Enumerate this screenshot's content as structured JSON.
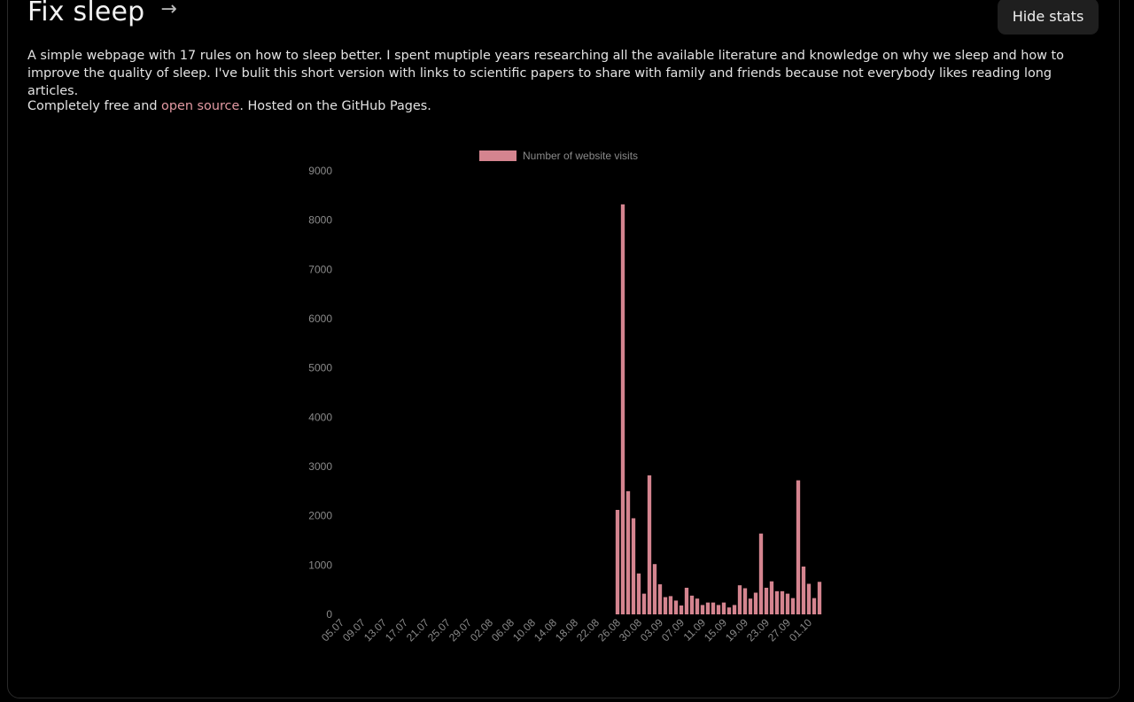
{
  "header": {
    "title": "Fix sleep",
    "arrow_icon": "arrow-right-icon",
    "hide_button_label": "Hide stats"
  },
  "intro": {
    "paragraph": "A simple webpage with 17 rules on how to sleep better. I spent muptiple years researching all the available literature and knowledge on why we sleep and how to improve the quality of sleep. I've bulit this short version with links to scientific papers to share with family and friends because not everybody likes reading long articles.",
    "line2_before": "Completely free and ",
    "line2_link": "open source",
    "line2_after": ". Hosted on the GitHub Pages."
  },
  "colors": {
    "bar": "#d4848f",
    "link": "#e39aa3",
    "background": "#000000"
  },
  "chart_data": {
    "type": "bar",
    "legend": "Number of website visits",
    "legend_position": "top",
    "ylim": [
      0,
      9000
    ],
    "yticks": [
      0,
      1000,
      2000,
      3000,
      4000,
      5000,
      6000,
      7000,
      8000,
      9000
    ],
    "grid": false,
    "xtick_labels": [
      "05.07",
      "09.07",
      "13.07",
      "17.07",
      "21.07",
      "25.07",
      "29.07",
      "02.08",
      "06.08",
      "10.08",
      "14.08",
      "18.08",
      "22.08",
      "26.08",
      "30.08",
      "03.09",
      "07.09",
      "11.09",
      "15.09",
      "19.09",
      "23.09",
      "27.09",
      "01.10"
    ],
    "series": [
      {
        "name": "Number of website visits",
        "values": [
          0,
          0,
          0,
          0,
          0,
          0,
          0,
          0,
          0,
          0,
          0,
          0,
          0,
          0,
          0,
          0,
          0,
          0,
          0,
          0,
          0,
          0,
          0,
          0,
          0,
          0,
          0,
          0,
          0,
          0,
          0,
          0,
          0,
          0,
          0,
          0,
          0,
          0,
          0,
          0,
          0,
          0,
          0,
          0,
          0,
          0,
          0,
          0,
          0,
          0,
          0,
          0,
          2120,
          8320,
          2500,
          1950,
          830,
          420,
          2820,
          1020,
          610,
          350,
          370,
          280,
          180,
          540,
          380,
          320,
          190,
          240,
          240,
          190,
          240,
          140,
          190,
          590,
          530,
          320,
          440,
          1640,
          540,
          670,
          470,
          470,
          420,
          330,
          2720,
          970,
          620,
          330,
          660
        ]
      }
    ]
  }
}
